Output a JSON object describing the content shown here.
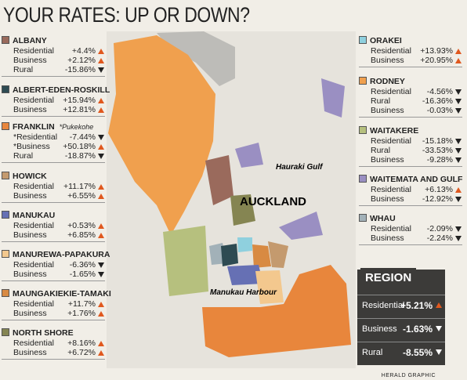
{
  "title": "YOUR RATES: UP OR DOWN?",
  "areas": [
    {
      "name": "ALBANY",
      "color": "#9a6a5c",
      "rows": [
        {
          "label": "Residential",
          "value": "+4.4%"
        },
        {
          "label": "Business",
          "value": "+2.12%"
        },
        {
          "label": "Rural",
          "value": "-15.86%"
        }
      ]
    },
    {
      "name": "ALBERT-EDEN-ROSKILL",
      "color": "#2e4b52",
      "rows": [
        {
          "label": "Residential",
          "value": "+15.94%"
        },
        {
          "label": "Business",
          "value": "+12.81%"
        }
      ]
    },
    {
      "name": "FRANKLIN",
      "note": "*Pukekohe",
      "color": "#e8863c",
      "rows": [
        {
          "label": "*Residential",
          "value": "-7.44%"
        },
        {
          "label": "*Business",
          "value": "+50.18%"
        },
        {
          "label": "Rural",
          "value": "-18.87%"
        }
      ]
    },
    {
      "name": "HOWICK",
      "color": "#c49a6e",
      "rows": [
        {
          "label": "Residential",
          "value": "+11.17%"
        },
        {
          "label": "Business",
          "value": "+6.55%"
        }
      ]
    },
    {
      "name": "MANUKAU",
      "color": "#6670b4",
      "rows": [
        {
          "label": "Residential",
          "value": "+0.53%"
        },
        {
          "label": "Business",
          "value": "+6.85%"
        }
      ]
    },
    {
      "name": "MANUREWA-PAPAKURA",
      "color": "#f3c88e",
      "rows": [
        {
          "label": "Residential",
          "value": "-6.36%"
        },
        {
          "label": "Business",
          "value": "-1.65%"
        }
      ]
    },
    {
      "name": "MAUNGAKIEKIE-TAMAKI",
      "color": "#d88a42",
      "rows": [
        {
          "label": "Residential",
          "value": "+11.7%"
        },
        {
          "label": "Business",
          "value": "+1.76%"
        }
      ]
    },
    {
      "name": "NORTH SHORE",
      "color": "#858552",
      "rows": [
        {
          "label": "Residential",
          "value": "+8.16%"
        },
        {
          "label": "Business",
          "value": "+6.72%"
        }
      ]
    },
    {
      "name": "ORAKEI",
      "color": "#8fd0de",
      "rows": [
        {
          "label": "Residential",
          "value": "+13.93%"
        },
        {
          "label": "Business",
          "value": "+20.95%"
        }
      ]
    },
    {
      "name": "RODNEY",
      "color": "#f0a04e",
      "rows": [
        {
          "label": "Residential",
          "value": "-4.56%"
        },
        {
          "label": "Rural",
          "value": "-16.36%"
        },
        {
          "label": "Business",
          "value": "-0.03%"
        }
      ]
    },
    {
      "name": "WAITAKERE",
      "color": "#b6c07e",
      "rows": [
        {
          "label": "Residential",
          "value": "-15.18%"
        },
        {
          "label": "Rural",
          "value": "-33.53%"
        },
        {
          "label": "Business",
          "value": "-9.28%"
        }
      ]
    },
    {
      "name": "WAITEMATA AND GULF",
      "color": "#9a8fc2",
      "rows": [
        {
          "label": "Residential",
          "value": "+6.13%"
        },
        {
          "label": "Business",
          "value": "-12.92%"
        }
      ]
    },
    {
      "name": "WHAU",
      "color": "#a2b1b8",
      "rows": [
        {
          "label": "Residential",
          "value": "-2.09%"
        },
        {
          "label": "Business",
          "value": "-2.24%"
        }
      ]
    }
  ],
  "region": {
    "title": "REGION",
    "rows": [
      {
        "label": "Residential",
        "value": "+5.21%"
      },
      {
        "label": "Business",
        "value": "-1.63%"
      },
      {
        "label": "Rural",
        "value": "-8.55%"
      }
    ]
  },
  "map_labels": [
    "Hauraki Gulf",
    "AUCKLAND",
    "Manukau Harbour"
  ],
  "credit": "HERALD GRAPHIC"
}
